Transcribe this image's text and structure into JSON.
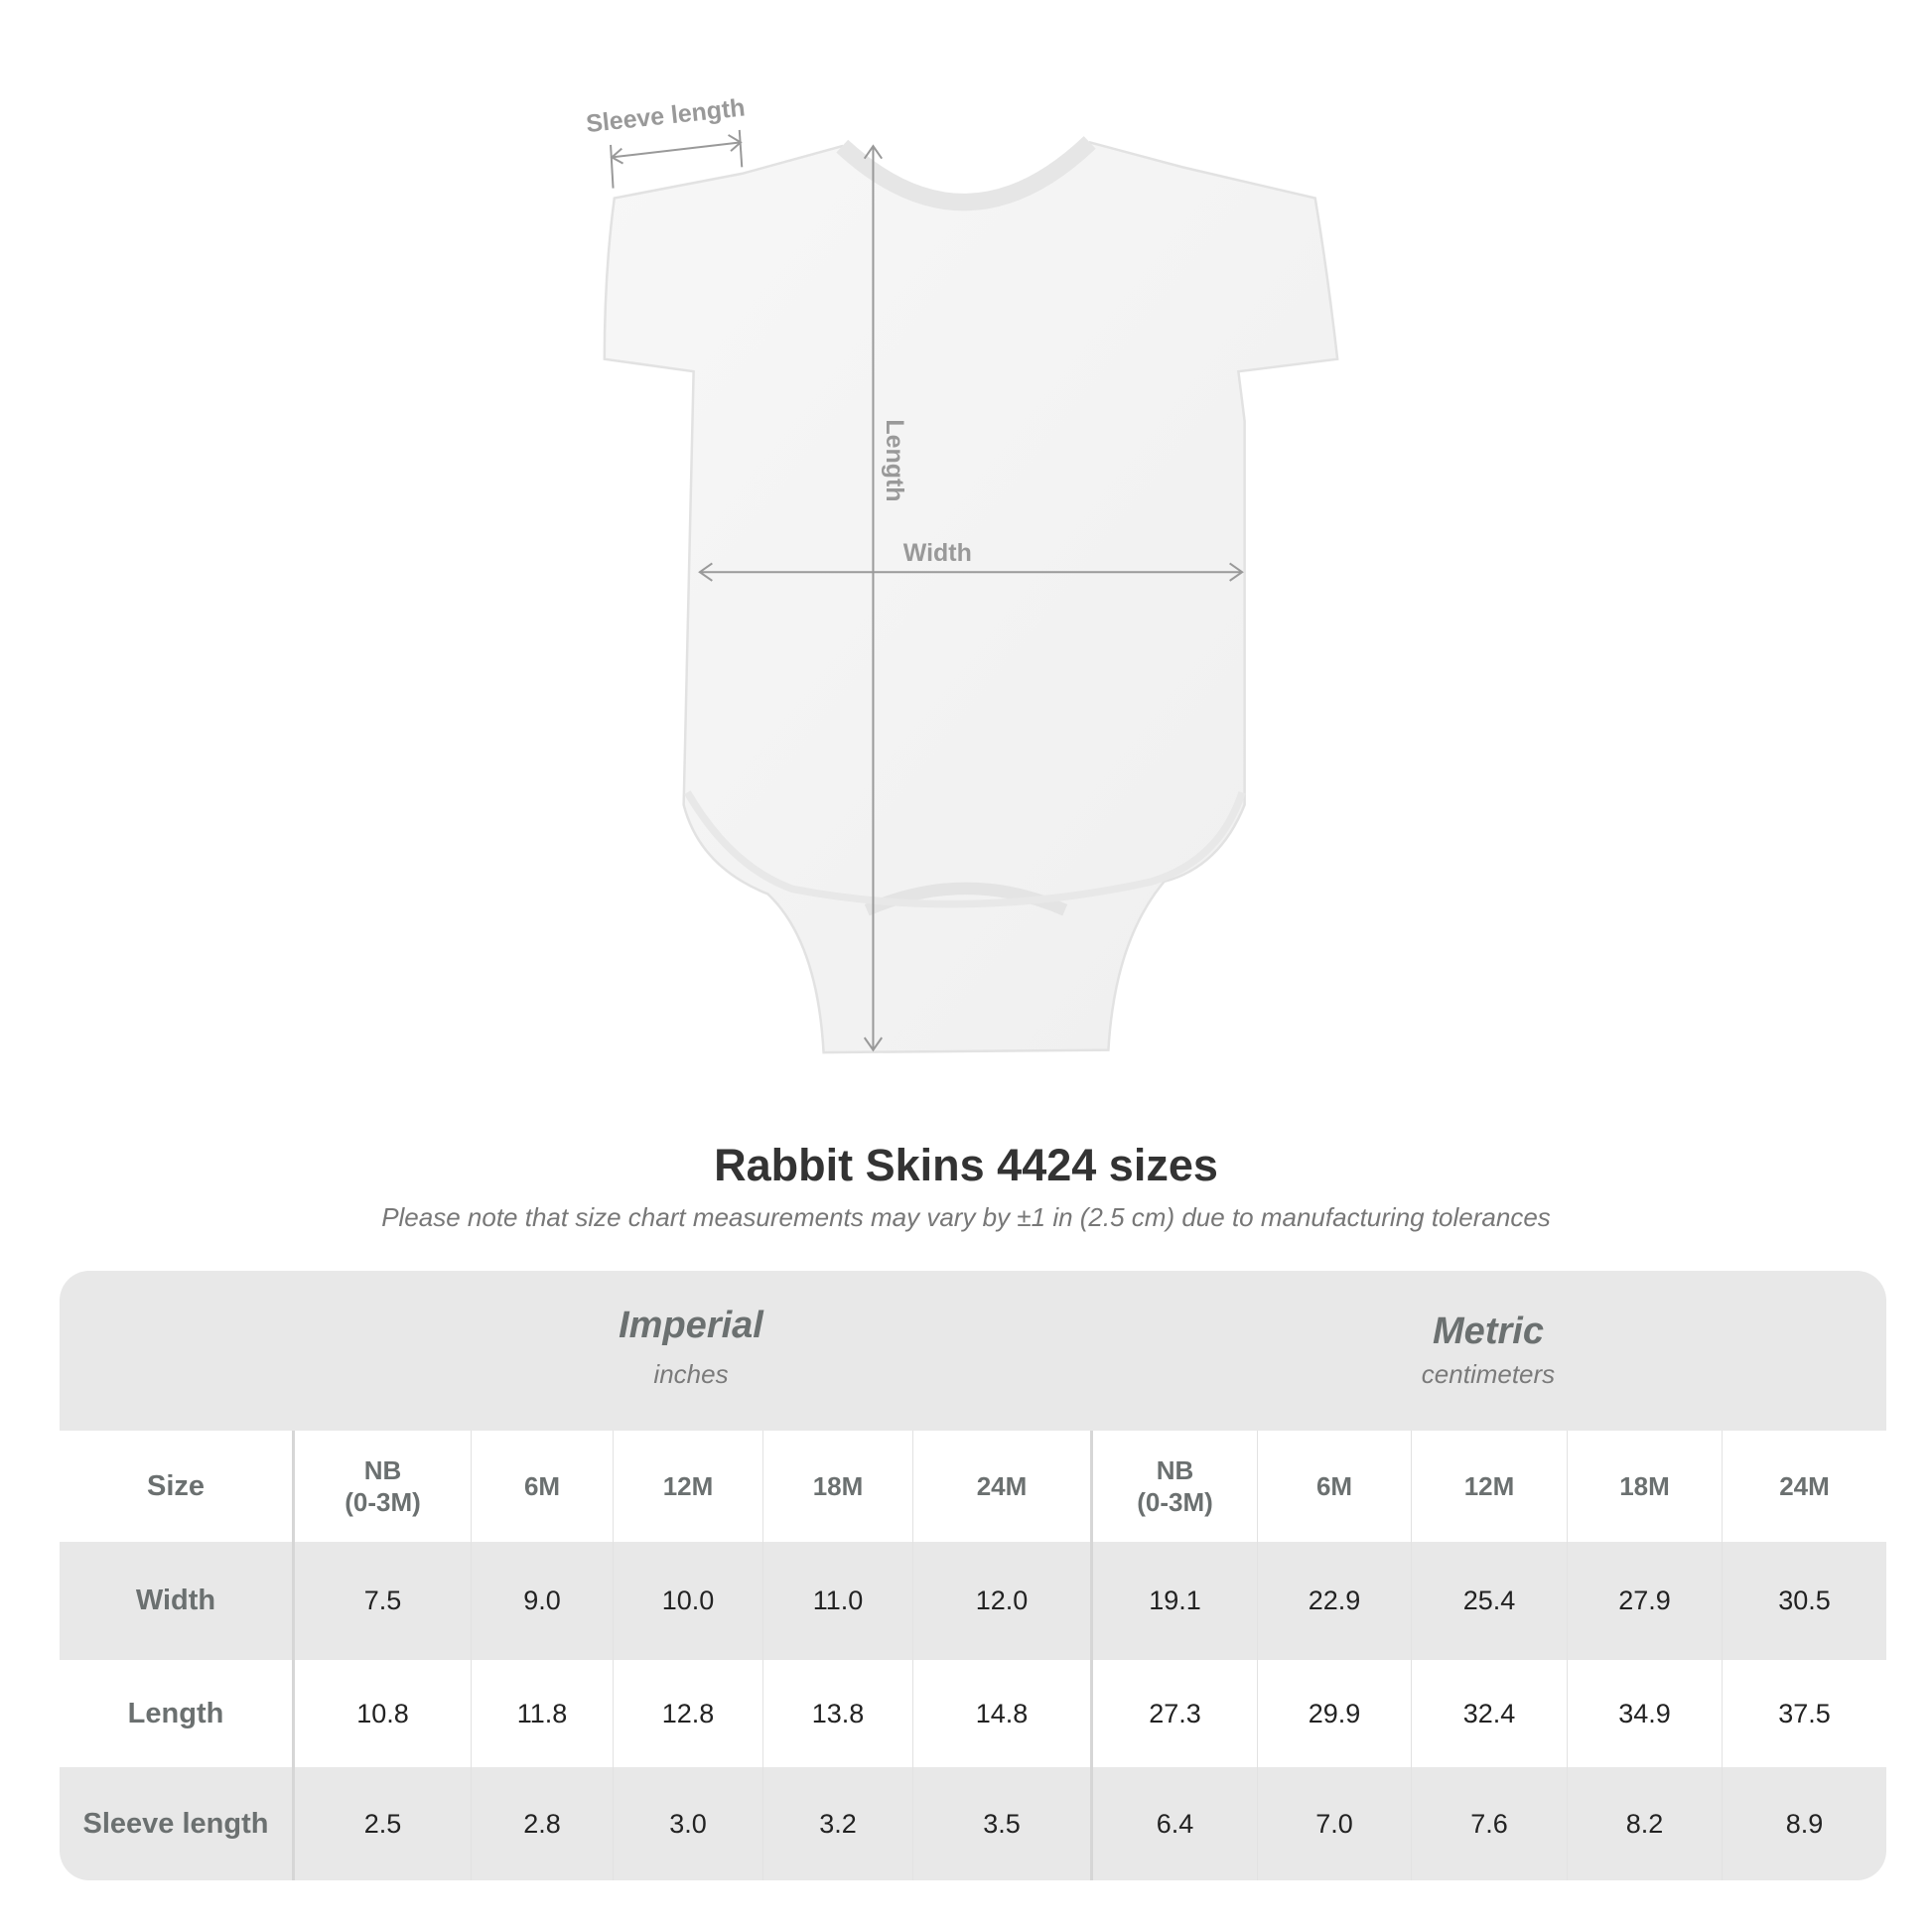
{
  "diagram": {
    "sleeve_label": "Sleeve length",
    "length_label": "Length",
    "width_label": "Width"
  },
  "title": "Rabbit Skins 4424 sizes",
  "subtitle": "Please note that size chart measurements may vary by ±1 in (2.5 cm) due to manufacturing tolerances",
  "table": {
    "imperial": {
      "name": "Imperial",
      "unit": "inches"
    },
    "metric": {
      "name": "Metric",
      "unit": "centimeters"
    },
    "size_label": "Size",
    "sizes": [
      "NB\n(0-3M)",
      "6M",
      "12M",
      "18M",
      "24M"
    ],
    "rows": [
      {
        "label": "Width",
        "imperial": [
          "7.5",
          "9.0",
          "10.0",
          "11.0",
          "12.0"
        ],
        "metric": [
          "19.1",
          "22.9",
          "25.4",
          "27.9",
          "30.5"
        ]
      },
      {
        "label": "Length",
        "imperial": [
          "10.8",
          "11.8",
          "12.8",
          "13.8",
          "14.8"
        ],
        "metric": [
          "27.3",
          "29.9",
          "32.4",
          "34.9",
          "37.5"
        ]
      },
      {
        "label": "Sleeve length",
        "imperial": [
          "2.5",
          "2.8",
          "3.0",
          "3.2",
          "3.5"
        ],
        "metric": [
          "6.4",
          "7.0",
          "7.6",
          "8.2",
          "8.9"
        ]
      }
    ]
  },
  "colors": {
    "band": "#e8e8e8",
    "label": "#6b7070",
    "annotation": "#999999"
  }
}
